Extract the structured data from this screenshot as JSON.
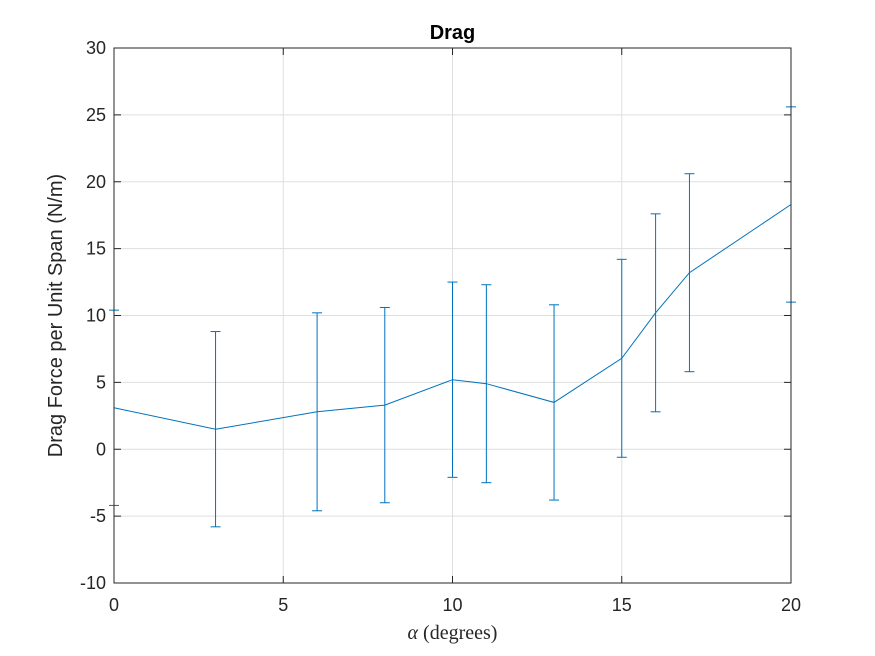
{
  "chart_data": {
    "type": "line",
    "title": "Drag",
    "xlabel_symbol": "α",
    "xlabel_text": " (degrees)",
    "ylabel": "Drag Force per Unit Span (N/m)",
    "xlim": [
      0,
      20
    ],
    "ylim": [
      -10,
      30
    ],
    "xticks": [
      0,
      5,
      10,
      15,
      20
    ],
    "yticks": [
      -10,
      -5,
      0,
      5,
      10,
      15,
      20,
      25,
      30
    ],
    "grid": true,
    "color": "#0072BD",
    "series": [
      {
        "x": [
          0,
          3,
          6,
          8,
          10,
          11,
          13,
          15,
          16,
          17,
          20
        ],
        "y": [
          3.1,
          1.5,
          2.8,
          3.3,
          5.2,
          4.9,
          3.5,
          6.8,
          10.2,
          13.2,
          18.3
        ],
        "err": [
          7.3,
          7.3,
          7.4,
          7.3,
          7.3,
          7.4,
          7.3,
          7.4,
          7.4,
          7.4,
          7.3
        ]
      }
    ]
  }
}
